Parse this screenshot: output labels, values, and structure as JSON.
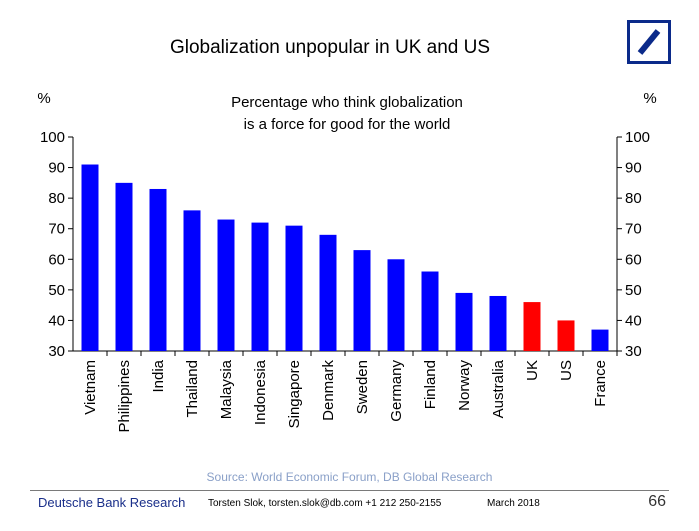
{
  "title": "Globalization unpopular in UK and US",
  "source": "Source: World Economic Forum, DB Global Research",
  "footer": {
    "brand": "Deutsche Bank Research",
    "author": "Torsten Slok, torsten.slok@db.com  +1 212 250-2155",
    "date": "March 2018",
    "page": "66"
  },
  "logo": {
    "name": "deutsche-bank-logo",
    "color": "#0b2a8a"
  },
  "chart_data": {
    "type": "bar",
    "subtitle_lines": [
      "Percentage who think globalization",
      "is a force for good for the world"
    ],
    "ylabel_left": "%",
    "ylabel_right": "%",
    "ylim": [
      30,
      100
    ],
    "yticks": [
      30,
      40,
      50,
      60,
      70,
      80,
      90,
      100
    ],
    "categories": [
      "Vietnam",
      "Philippines",
      "India",
      "Thailand",
      "Malaysia",
      "Indonesia",
      "Singapore",
      "Denmark",
      "Sweden",
      "Germany",
      "Finland",
      "Norway",
      "Australia",
      "UK",
      "US",
      "France"
    ],
    "values": [
      91,
      85,
      83,
      76,
      73,
      72,
      71,
      68,
      63,
      60,
      56,
      49,
      48,
      46,
      40,
      37
    ],
    "bar_colors": [
      "#0000ff",
      "#0000ff",
      "#0000ff",
      "#0000ff",
      "#0000ff",
      "#0000ff",
      "#0000ff",
      "#0000ff",
      "#0000ff",
      "#0000ff",
      "#0000ff",
      "#0000ff",
      "#0000ff",
      "#ff0000",
      "#ff0000",
      "#0000ff"
    ],
    "grid": false,
    "legend": "none"
  }
}
